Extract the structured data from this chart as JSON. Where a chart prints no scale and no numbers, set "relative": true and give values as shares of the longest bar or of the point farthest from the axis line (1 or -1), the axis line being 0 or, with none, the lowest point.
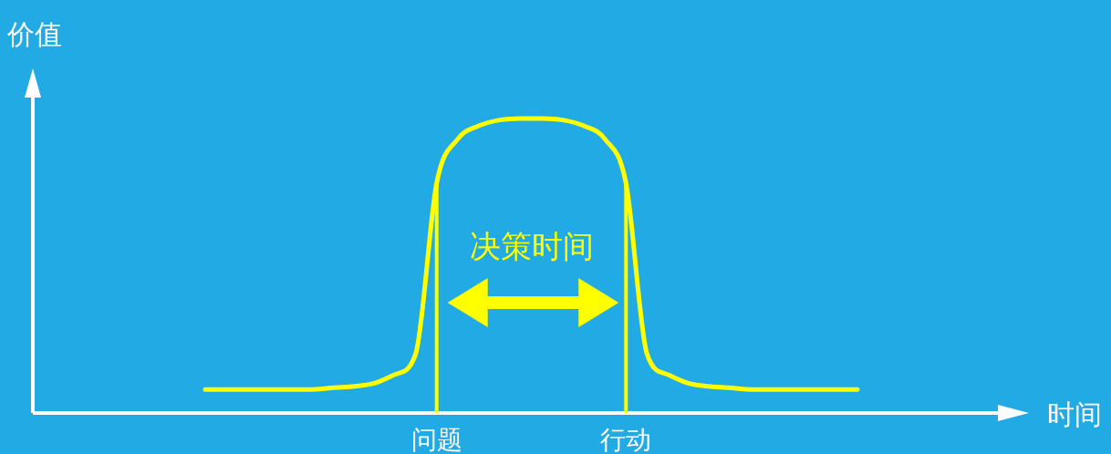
{
  "chart_data": {
    "type": "line",
    "relative": true,
    "categories": [
      null,
      null,
      null,
      null,
      null,
      null,
      null,
      null,
      null,
      null,
      null,
      "问题",
      null,
      null,
      null,
      null,
      null,
      null,
      null,
      null,
      "行动",
      null,
      null,
      null,
      null,
      null,
      null,
      null,
      null,
      null,
      null,
      null
    ],
    "series": [
      {
        "color": "#ffff00",
        "values": [
          0.08,
          0.08,
          0.08,
          0.08,
          0.08,
          0.08,
          0.085,
          0.09,
          0.1,
          0.13,
          0.2,
          0.78,
          0.93,
          0.975,
          0.995,
          1,
          1,
          0.995,
          0.975,
          0.93,
          0.78,
          0.2,
          0.13,
          0.1,
          0.09,
          0.085,
          0.08,
          0.08,
          0.08,
          0.08,
          0.08,
          0.08
        ]
      }
    ],
    "ref_lines": [
      {
        "axis": "x",
        "value": "问题",
        "color": "#ffff00"
      },
      {
        "axis": "x",
        "value": "行动",
        "color": "#ffff00"
      }
    ],
    "annotations": [
      "价值",
      "时间",
      "决策时间"
    ],
    "marker": "none",
    "line_style": "solid"
  }
}
